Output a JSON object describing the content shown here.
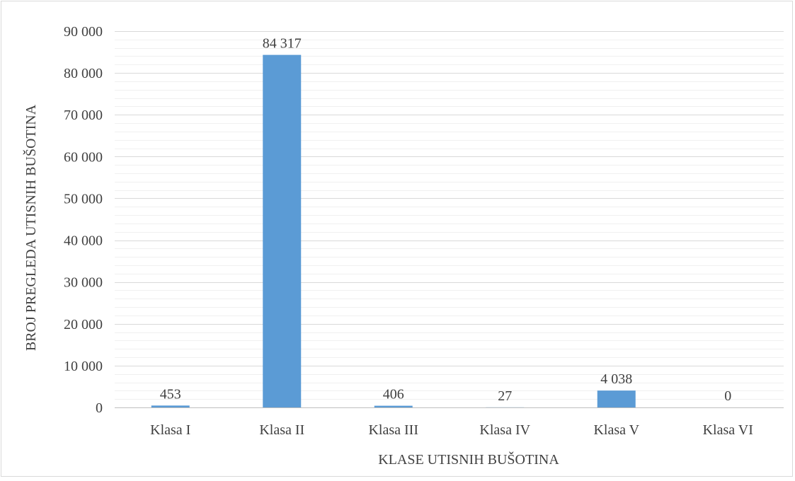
{
  "chart_data": {
    "type": "bar",
    "title": "",
    "xlabel": "KLASE UTISNIH BUŠOTINA",
    "ylabel": "BROJ PREGLEDA UTISNIH BUŠOTINA",
    "categories": [
      "Klasa I",
      "Klasa II",
      "Klasa III",
      "Klasa IV",
      "Klasa V",
      "Klasa VI"
    ],
    "values": [
      453,
      84317,
      406,
      27,
      4038,
      0
    ],
    "value_labels": [
      "453",
      "84 317",
      "406",
      "27",
      "4 038",
      "0"
    ],
    "ylim": [
      0,
      90000
    ],
    "y_major_step": 10000,
    "y_minor_step": 2000,
    "y_tick_labels": [
      "0",
      "10 000",
      "20 000",
      "30 000",
      "40 000",
      "50 000",
      "60 000",
      "70 000",
      "80 000",
      "90 000"
    ],
    "grid": true,
    "legend": "none",
    "bar_color": "#5b9bd5",
    "major_grid_color": "#d9d9d9",
    "minor_grid_color": "#f0f0f0",
    "axis_color": "#bfbfbf",
    "text_color": "#404040"
  }
}
